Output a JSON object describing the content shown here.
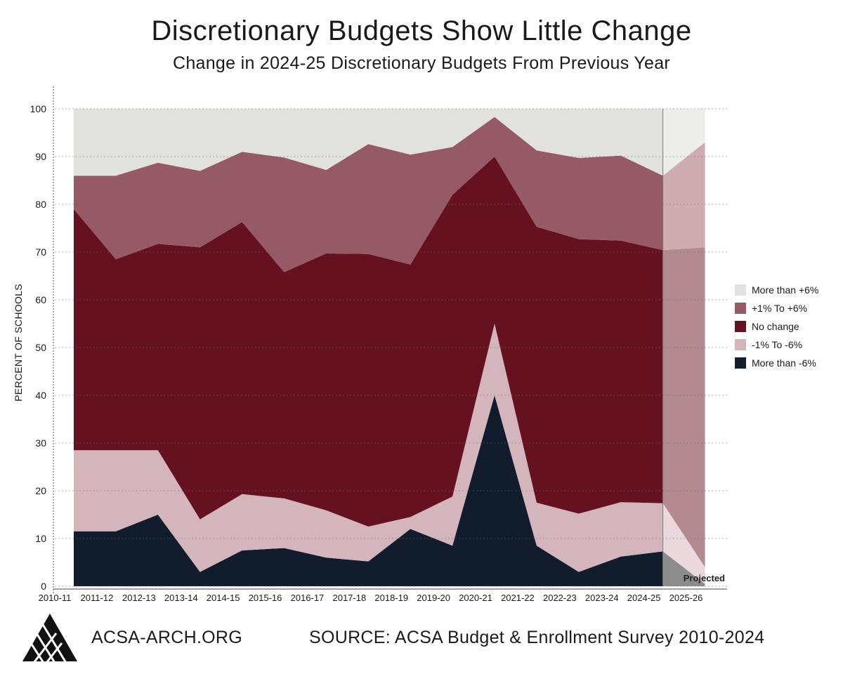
{
  "header": {
    "title": "Discretionary Budgets Show Little Change",
    "subtitle": "Change in 2024-25 Discretionary Budgets From Previous Year"
  },
  "footer": {
    "site": "ACSA-ARCH.ORG",
    "source": "SOURCE: ACSA Budget & Enrollment Survey 2010-2024"
  },
  "chart_data": {
    "type": "area",
    "stacked": true,
    "ylabel": "PERCENT OF SCHOOLS",
    "xlabel": "",
    "ylim": [
      0,
      100
    ],
    "yticks": [
      0,
      10,
      20,
      30,
      40,
      50,
      60,
      70,
      80,
      90,
      100
    ],
    "categories": [
      "2010-11",
      "2011-12",
      "2012-13",
      "2013-14",
      "2014-15",
      "2015-16",
      "2016-17",
      "2017-18",
      "2018-19",
      "2019-20",
      "2020-21",
      "2021-22",
      "2022-23",
      "2023-24",
      "2024-25",
      "2025-26"
    ],
    "gridlines": "horizontal dashed",
    "legend_position": "right",
    "annotation": "Projected",
    "projected_from": "2024-25",
    "series": [
      {
        "name": "More than -6%",
        "color": "#111d2c",
        "projected_color": "#8c8c8c",
        "values": [
          11.5,
          11.5,
          15,
          3,
          7.5,
          8,
          6,
          5.2,
          12,
          8.5,
          40,
          8.5,
          3,
          6.2,
          7.3,
          0.5
        ]
      },
      {
        "name": "-1% To -6%",
        "color": "#d3b5bb",
        "projected_color": "#ead8dc",
        "values": [
          17,
          17,
          13.5,
          11,
          11.8,
          10.4,
          9.9,
          7.3,
          2.5,
          10.3,
          15,
          9,
          12.2,
          11.4,
          10.1,
          3.5
        ]
      },
      {
        "name": "No change",
        "color": "#66111f",
        "projected_color": "#b38a90",
        "values": [
          50.5,
          40,
          43.2,
          57,
          57,
          47.4,
          53.8,
          57.1,
          52.9,
          63.2,
          35,
          57.8,
          57.5,
          54.8,
          53,
          67
        ]
      },
      {
        "name": "+1% To +6%",
        "color": "#955a65",
        "projected_color": "#cfacb2",
        "values": [
          7,
          17.5,
          17,
          16,
          14.7,
          24,
          17.5,
          23,
          23,
          10,
          8.3,
          16,
          17,
          17.8,
          15.6,
          22
        ]
      },
      {
        "name": "More than +6%",
        "color": "#e1e2dd",
        "projected_color": "#ededeb",
        "values": [
          14,
          14,
          11.3,
          13,
          9,
          10.2,
          12.8,
          7.4,
          9.6,
          8,
          1.7,
          8.7,
          10.3,
          9.8,
          14,
          7
        ]
      }
    ]
  }
}
